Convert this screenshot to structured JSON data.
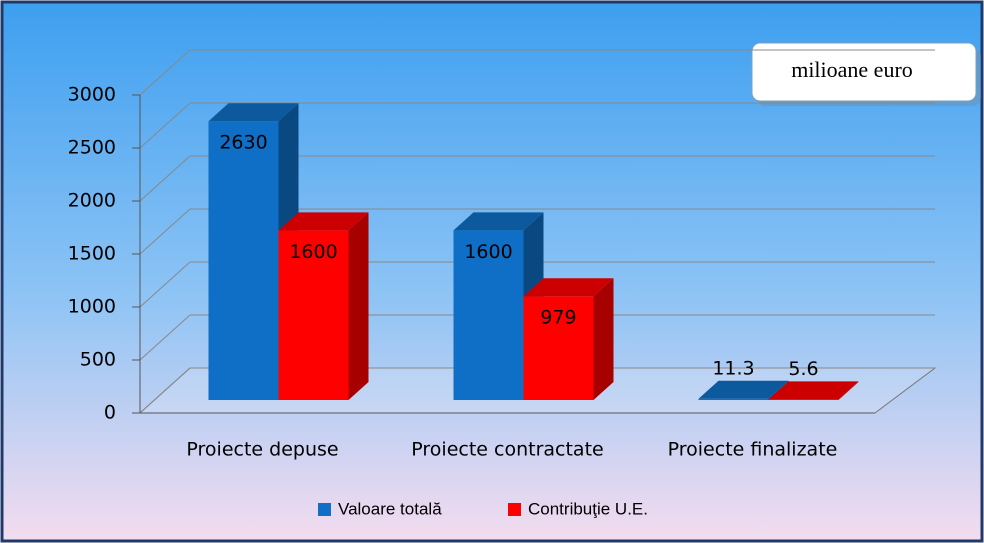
{
  "chart_data": {
    "type": "bar3d",
    "annotation": "milioane euro",
    "categories": [
      "Proiecte depuse",
      "Proiecte contractate",
      "Proiecte finalizate"
    ],
    "series": [
      {
        "name": "Valoare totală",
        "color": "#0f6fc6",
        "values": [
          2630,
          1600,
          11.3
        ]
      },
      {
        "name": "Contribuţie U.E.",
        "color": "#ff0000",
        "values": [
          1600,
          979,
          5.6
        ]
      }
    ],
    "ylim": [
      0,
      3000
    ],
    "yticks": [
      0,
      500,
      1000,
      1500,
      2000,
      2500,
      3000
    ],
    "grid": true,
    "legend": "bottom"
  }
}
